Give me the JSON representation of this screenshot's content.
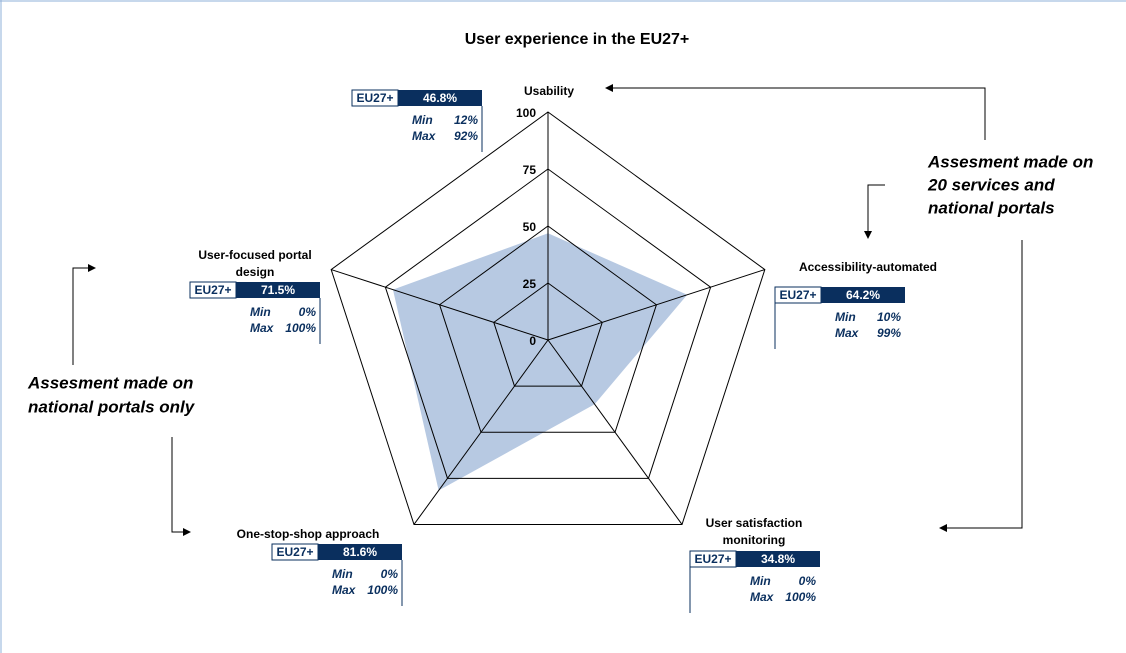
{
  "chart_data": {
    "type": "radar",
    "title": "User experience in the EU27+",
    "categories": [
      [
        "Usability"
      ],
      [
        "Accessibility-automated"
      ],
      [
        "User satisfaction",
        "monitoring"
      ],
      [
        "One-stop-shop approach"
      ],
      [
        "User-focused portal",
        "design"
      ]
    ],
    "values": [
      46.8,
      64.2,
      34.8,
      81.6,
      71.5
    ],
    "value_labels": [
      "46.8%",
      "64.2%",
      "34.8%",
      "81.6%",
      "71.5%"
    ],
    "color": "#b7c9e2",
    "box_label": "EU27+",
    "min_text": "Min",
    "max_text": "Max",
    "min_labels": [
      "12%",
      "10%",
      "0%",
      "0%",
      "0%"
    ],
    "max_labels": [
      "92%",
      "99%",
      "100%",
      "100%",
      "100%"
    ],
    "ylim": [
      0,
      100
    ],
    "yticks": [
      0,
      25,
      50,
      75,
      100
    ],
    "grid": true,
    "annotations": [
      [
        "Assesment made on",
        "20 services and",
        "national portals"
      ],
      [
        "Assesment made on",
        "national portals only"
      ]
    ]
  }
}
